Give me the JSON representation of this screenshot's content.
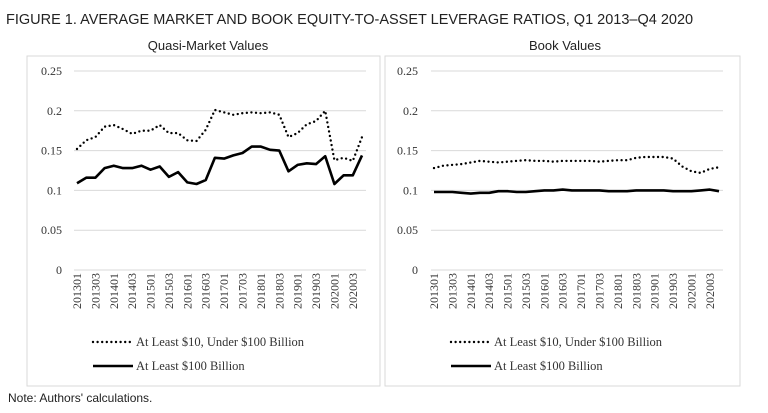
{
  "figure_title": "FIGURE 1. AVERAGE MARKET AND BOOK EQUITY-TO-ASSET LEVERAGE RATIOS, Q1 2013–Q4 2020",
  "note": "Note: Authors' calculations.",
  "chart_data": [
    {
      "type": "line",
      "title": "Quasi-Market Values",
      "ylim": [
        0,
        0.25
      ],
      "yticks": [
        "0",
        "0.05",
        "0.1",
        "0.15",
        "0.2",
        "0.25"
      ],
      "xtick_labels": [
        "201301",
        "201303",
        "201401",
        "201403",
        "201501",
        "201503",
        "201601",
        "201603",
        "201701",
        "201703",
        "201801",
        "201803",
        "201901",
        "201903",
        "202001",
        "202003"
      ],
      "grid": true,
      "legend_position": "bottom",
      "series": [
        {
          "name": "At Least $10, Under $100 Billion",
          "style": "dotted",
          "values": [
            0.152,
            0.163,
            0.167,
            0.18,
            0.182,
            0.177,
            0.171,
            0.175,
            0.175,
            0.182,
            0.172,
            0.172,
            0.163,
            0.162,
            0.176,
            0.201,
            0.198,
            0.195,
            0.197,
            0.198,
            0.197,
            0.198,
            0.195,
            0.167,
            0.172,
            0.183,
            0.187,
            0.2,
            0.138,
            0.141,
            0.137,
            0.167
          ]
        },
        {
          "name": "At Least $100 Billion",
          "style": "solid",
          "values": [
            0.109,
            0.116,
            0.116,
            0.128,
            0.131,
            0.128,
            0.128,
            0.131,
            0.126,
            0.13,
            0.117,
            0.123,
            0.11,
            0.108,
            0.113,
            0.141,
            0.14,
            0.144,
            0.147,
            0.155,
            0.155,
            0.151,
            0.15,
            0.124,
            0.132,
            0.134,
            0.133,
            0.143,
            0.108,
            0.119,
            0.119,
            0.144
          ]
        }
      ]
    },
    {
      "type": "line",
      "title": "Book Values",
      "ylim": [
        0,
        0.25
      ],
      "yticks": [
        "0",
        "0.05",
        "0.1",
        "0.15",
        "0.2",
        "0.25"
      ],
      "xtick_labels": [
        "201301",
        "201303",
        "201401",
        "201403",
        "201501",
        "201503",
        "201601",
        "201603",
        "201701",
        "201703",
        "201801",
        "201803",
        "201901",
        "201903",
        "202001",
        "202003"
      ],
      "grid": true,
      "legend_position": "bottom",
      "series": [
        {
          "name": "At Least $10, Under $100 Billion",
          "style": "dotted",
          "values": [
            0.128,
            0.131,
            0.132,
            0.133,
            0.135,
            0.137,
            0.136,
            0.135,
            0.136,
            0.137,
            0.138,
            0.137,
            0.137,
            0.136,
            0.137,
            0.137,
            0.137,
            0.137,
            0.136,
            0.137,
            0.138,
            0.138,
            0.141,
            0.142,
            0.142,
            0.142,
            0.14,
            0.13,
            0.124,
            0.122,
            0.127,
            0.129
          ]
        },
        {
          "name": "At Least $100 Billion",
          "style": "solid",
          "values": [
            0.098,
            0.098,
            0.098,
            0.097,
            0.096,
            0.097,
            0.097,
            0.099,
            0.099,
            0.098,
            0.098,
            0.099,
            0.1,
            0.1,
            0.101,
            0.1,
            0.1,
            0.1,
            0.1,
            0.099,
            0.099,
            0.099,
            0.1,
            0.1,
            0.1,
            0.1,
            0.099,
            0.099,
            0.099,
            0.1,
            0.101,
            0.099
          ]
        }
      ]
    }
  ]
}
